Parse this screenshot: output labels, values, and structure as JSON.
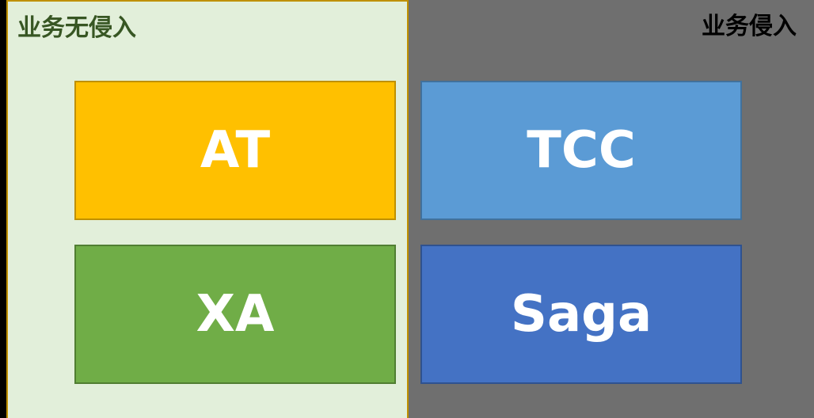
{
  "left_panel": {
    "title": "业务无侵入",
    "boxes": [
      {
        "label": "AT",
        "color": "#ffc000"
      },
      {
        "label": "XA",
        "color": "#70ad47"
      }
    ],
    "background": "#e2efda",
    "title_color": "#375623"
  },
  "right_panel": {
    "title": "业务侵入",
    "boxes": [
      {
        "label": "TCC",
        "color": "#5b9bd5"
      },
      {
        "label": "Saga",
        "color": "#4472c4"
      }
    ],
    "background": "#6f6f6f",
    "title_color": "#000000"
  }
}
